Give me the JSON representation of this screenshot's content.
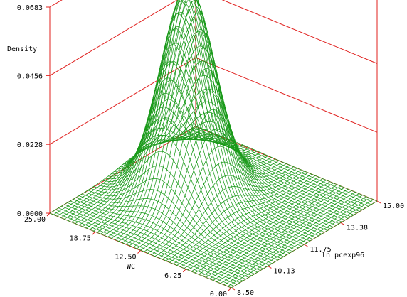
{
  "colors": {
    "frame": "#e0201e",
    "mesh": "#1a9a1a",
    "text": "#000000"
  },
  "chart_data": {
    "type": "surface",
    "title": "",
    "zlabel": "Density",
    "xlabel": "ln_pcexp96",
    "ylabel": "WC",
    "zlim": [
      0,
      0.0683
    ],
    "zticks": [
      "0.0683",
      "0.0456",
      "0.0228",
      "0.0000"
    ],
    "z_tick_values": [
      0.0683,
      0.0456,
      0.0228,
      0.0
    ],
    "xlim": [
      8.5,
      15.0
    ],
    "xticks": [
      "8.50",
      "10.13",
      "11.75",
      "13.38",
      "15.00"
    ],
    "ylim": [
      0,
      25
    ],
    "yticks": [
      "25.00",
      "18.75",
      "12.50",
      "6.25",
      "0.00"
    ],
    "grid": true,
    "surface": {
      "shape": "bivariate normal density",
      "peak_density": 0.0683,
      "peak_at_ln_pcexp96": 11.9,
      "peak_at_wc": 16.5
    }
  }
}
